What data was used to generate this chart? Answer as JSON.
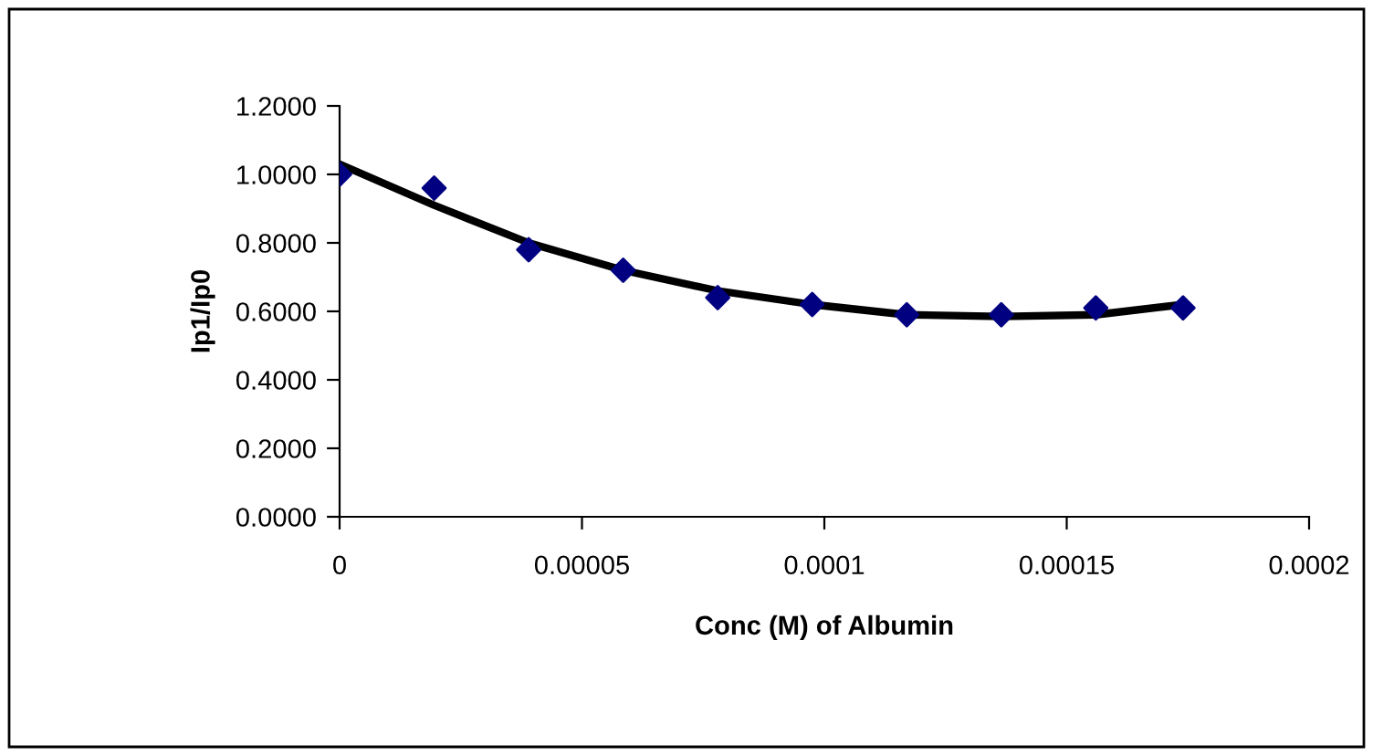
{
  "chart_data": {
    "type": "scatter",
    "xlabel": "Conc (M) of Albumin",
    "ylabel": "Ip1/Ip0",
    "xlim": [
      0,
      0.0002
    ],
    "ylim": [
      0,
      1.2
    ],
    "xticks": [
      0,
      {
        "value": 5e-05,
        "label": "0.00005"
      },
      {
        "value": 0.0001,
        "label": "0.0001"
      },
      {
        "value": 0.00015,
        "label": "0.00015"
      },
      {
        "value": 0.0002,
        "label": "0.0002"
      }
    ],
    "yticks": [
      {
        "value": 0,
        "label": "0.0000"
      },
      {
        "value": 0.2,
        "label": "0.2000"
      },
      {
        "value": 0.4,
        "label": "0.4000"
      },
      {
        "value": 0.6,
        "label": "0.6000"
      },
      {
        "value": 0.8,
        "label": "0.8000"
      },
      {
        "value": 1.0,
        "label": "1.0000"
      },
      {
        "value": 1.2,
        "label": "1.2000"
      }
    ],
    "grid": false,
    "marker": "diamond",
    "series": [
      {
        "color": "#000080",
        "x": [
          0,
          1.95e-05,
          3.9e-05,
          5.85e-05,
          7.8e-05,
          9.75e-05,
          0.000117,
          0.0001365,
          0.000156,
          0.000174
        ],
        "values": [
          1.0,
          0.96,
          0.78,
          0.72,
          0.64,
          0.62,
          0.59,
          0.59,
          0.61,
          0.61
        ]
      },
      {
        "type": "line",
        "color": "#000000",
        "marker": "none",
        "line_style": "solid",
        "x": [
          0,
          1.95e-05,
          3.9e-05,
          5.85e-05,
          7.8e-05,
          9.75e-05,
          0.000117,
          0.0001365,
          0.000156,
          0.000174
        ],
        "values": [
          1.03,
          0.91,
          0.8,
          0.72,
          0.66,
          0.62,
          0.59,
          0.585,
          0.59,
          0.62
        ]
      }
    ]
  }
}
